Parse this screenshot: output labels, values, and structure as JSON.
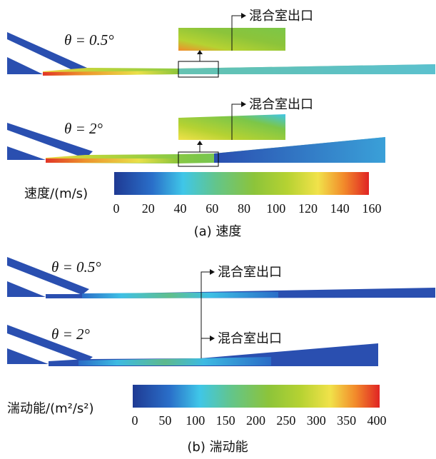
{
  "panel_a": {
    "theta_1": "θ = 0.5°",
    "theta_2": "θ = 2°",
    "exit_label_1": "混合室出口",
    "exit_label_2": "混合室出口",
    "colorbar_title": "速度/(m/s)",
    "ticks": [
      "0",
      "20",
      "40",
      "60",
      "80",
      "100",
      "120",
      "140",
      "160"
    ],
    "caption": "(a) 速度"
  },
  "panel_b": {
    "theta_1": "θ = 0.5°",
    "theta_2": "θ = 2°",
    "exit_label_1": "混合室出口",
    "exit_label_2": "混合室出口",
    "colorbar_title": "湍动能/(m²/s²)",
    "ticks": [
      "0",
      "50",
      "100",
      "150",
      "200",
      "250",
      "300",
      "350",
      "400"
    ],
    "caption": "(b) 湍动能"
  },
  "colormap": [
    "#1f3a93",
    "#2a6fc9",
    "#3fc6e8",
    "#63c58a",
    "#8cc43a",
    "#b6d232",
    "#f1e24a",
    "#f28c2b",
    "#e02424"
  ]
}
